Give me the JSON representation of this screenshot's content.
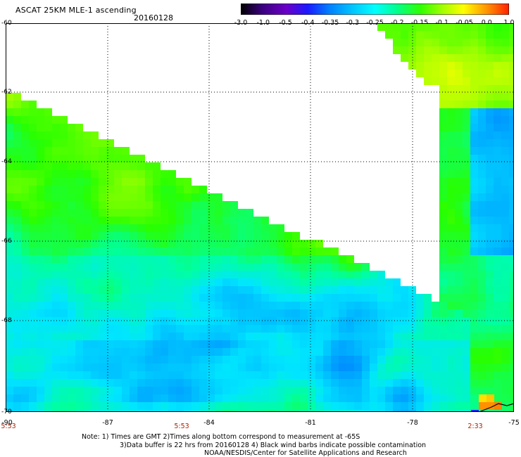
{
  "header": {
    "title": "ASCAT 25KM MLE-1 ascending",
    "date": "20160128"
  },
  "colorbar": {
    "labels": [
      "-3.0",
      "-1.0",
      "-0.5",
      "-0.4",
      "-0.35",
      "-0.3",
      "-0.25",
      "-0.2",
      "-0.15",
      "-0.1",
      "-0.05",
      "0.0",
      "1.0"
    ],
    "colors": [
      "#000000",
      "#3b0080",
      "#6b00c8",
      "#1a1aff",
      "#0080ff",
      "#00c8ff",
      "#00ffff",
      "#00ff90",
      "#30ff00",
      "#a0ff00",
      "#ffff00",
      "#ff9000",
      "#ff2000"
    ]
  },
  "axes": {
    "lat_labels": [
      "-60",
      "-62",
      "-64",
      "-66",
      "-68",
      "-70"
    ],
    "lon_labels": [
      "-90",
      "-87",
      "-84",
      "-81",
      "-78",
      "-75"
    ],
    "time_labels": [
      "5:53",
      "5:53",
      "2:33"
    ]
  },
  "notes": {
    "line1": "Note: 1) Times are GMT 2)Times along bottom correspond to measurement at -65S",
    "line2": "3)Data buffer is 22 hrs from 20160128 4) Black wind barbs indicate possible contamination",
    "line3": "NOAA/NESDIS/Center for Satellite Applications and Research"
  }
}
